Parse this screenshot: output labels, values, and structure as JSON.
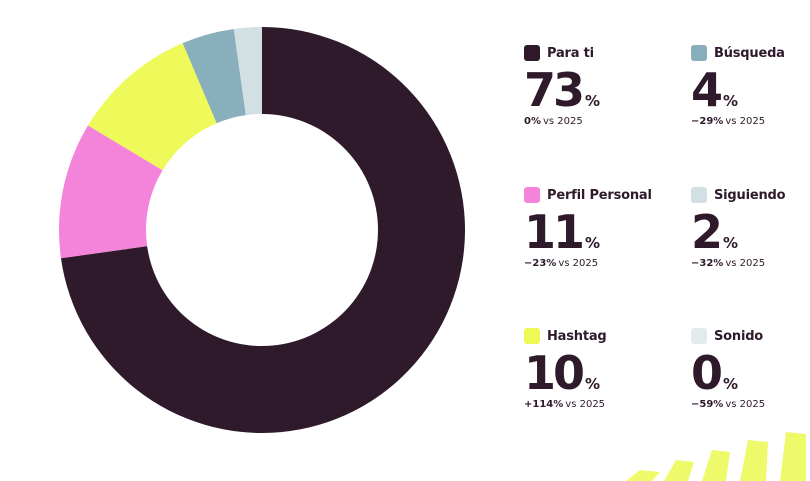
{
  "chart_data": {
    "type": "pie",
    "style": "donut",
    "categories": [
      "Para ti",
      "Búsqueda",
      "Perfil Personal",
      "Siguiendo",
      "Hashtag",
      "Sonido"
    ],
    "slice_order_clockwise": [
      "Para ti",
      "Perfil Personal",
      "Hashtag",
      "Búsqueda",
      "Siguiendo"
    ],
    "slice_values_degrees": {
      "Para ti": 262,
      "Perfil Personal": 39,
      "Hashtag": 36,
      "Búsqueda": 15,
      "Siguiendo": 8
    },
    "items": [
      {
        "name": "Para ti",
        "value": "73",
        "unit": "%",
        "change": "0%",
        "vs": "vs 2025",
        "color": "#2e1a2b"
      },
      {
        "name": "Búsqueda",
        "value": "4",
        "unit": "%",
        "change": "−29%",
        "vs": "vs 2025",
        "color": "#8aafbc"
      },
      {
        "name": "Perfil Personal",
        "value": "11",
        "unit": "%",
        "change": "−23%",
        "vs": "vs 2025",
        "color": "#f484d9"
      },
      {
        "name": "Siguiendo",
        "value": "2",
        "unit": "%",
        "change": "−32%",
        "vs": "vs 2025",
        "color": "#d2dfe3"
      },
      {
        "name": "Hashtag",
        "value": "10",
        "unit": "%",
        "change": "+114%",
        "vs": "vs 2025",
        "color": "#eefa5a"
      },
      {
        "name": "Sonido",
        "value": "0",
        "unit": "%",
        "change": "−59%",
        "vs": "vs 2025",
        "color": "#e4ebee"
      }
    ],
    "legend": "right"
  },
  "decor": {
    "accent": "#eefa5a"
  }
}
